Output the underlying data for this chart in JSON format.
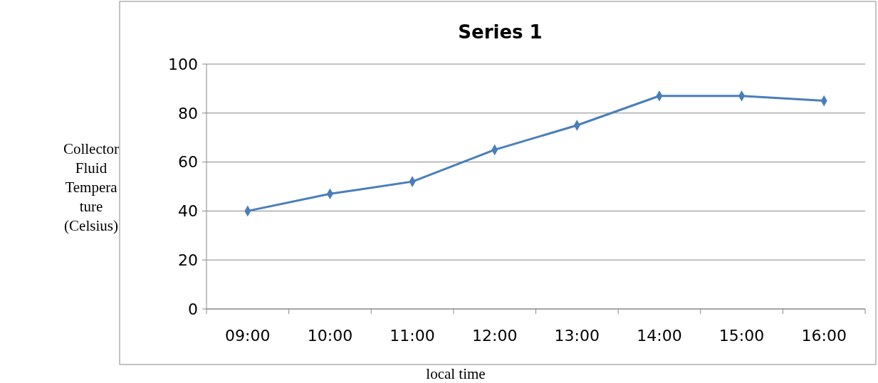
{
  "chart_data": {
    "type": "line",
    "title": "Series 1",
    "xlabel": "local time",
    "ylabel": "Collector Fluid Temperature (Celsius)",
    "categories": [
      "09:00",
      "10:00",
      "11:00",
      "12:00",
      "13:00",
      "14:00",
      "15:00",
      "16:00"
    ],
    "series": [
      {
        "color": "#4a7ebb",
        "values": [
          40,
          47,
          52,
          65,
          75,
          87,
          87,
          85
        ]
      }
    ],
    "ylim": [
      0,
      100
    ],
    "yticks": [
      0,
      20,
      40,
      60,
      80,
      100
    ],
    "grid": "y",
    "marker": "diamond",
    "line_style": "solid"
  }
}
